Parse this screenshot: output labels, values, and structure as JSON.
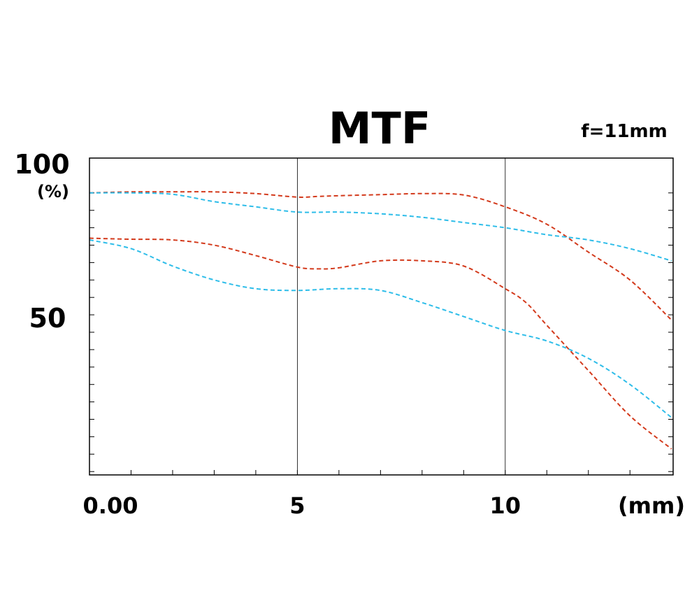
{
  "chart_data": {
    "type": "line",
    "title": "MTF",
    "annotation": "f=11mm",
    "ylabel_top": "100",
    "ylabel_unit": "(%)",
    "ylabel_mid": "50",
    "xlabel_unit": "(mm)",
    "x_tick_labels": [
      {
        "label": "0.00",
        "value": 0
      },
      {
        "label": "5",
        "value": 5
      },
      {
        "label": "10",
        "value": 10
      }
    ],
    "xlim": [
      0,
      14
    ],
    "ylim": [
      0,
      100
    ],
    "grid": "vertical lines at 5 and 10",
    "colors": {
      "red": "#d33a1c",
      "blue": "#2ebde9"
    },
    "series": [
      {
        "color": "red",
        "x": [
          0,
          1,
          2,
          3,
          4,
          5,
          5.5,
          6,
          7,
          8,
          9,
          10,
          11,
          12,
          13,
          14
        ],
        "y": [
          90,
          90.3,
          90.3,
          90.3,
          89.8,
          88.8,
          89,
          89.2,
          89.5,
          89.8,
          89.4,
          86,
          81,
          73,
          65,
          53.5
        ]
      },
      {
        "color": "blue",
        "x": [
          0,
          1,
          2,
          3,
          4,
          5,
          6,
          7,
          8,
          9,
          10,
          11,
          12,
          13,
          14
        ],
        "y": [
          90,
          90,
          89.6,
          87.5,
          86,
          84.5,
          84.5,
          84,
          83,
          81.5,
          80,
          78,
          76.5,
          74,
          70.5
        ]
      },
      {
        "color": "red",
        "x": [
          0,
          1,
          2,
          3,
          4,
          5,
          5.5,
          6,
          7,
          8,
          9,
          10,
          10.5,
          11,
          12,
          13,
          14
        ],
        "y": [
          77,
          76.7,
          76.5,
          75,
          72,
          68.7,
          68.2,
          68.5,
          70.5,
          70.5,
          69,
          62.5,
          58.5,
          52,
          39,
          26,
          16.5
        ]
      },
      {
        "color": "blue",
        "x": [
          0,
          1,
          2,
          3,
          4,
          5,
          6,
          7,
          8,
          9,
          10,
          11,
          12,
          13,
          14
        ],
        "y": [
          76.5,
          74,
          69,
          65,
          62.5,
          62,
          62.5,
          62,
          58.5,
          54.5,
          50.5,
          47.5,
          42.5,
          35,
          25.5
        ]
      }
    ]
  }
}
